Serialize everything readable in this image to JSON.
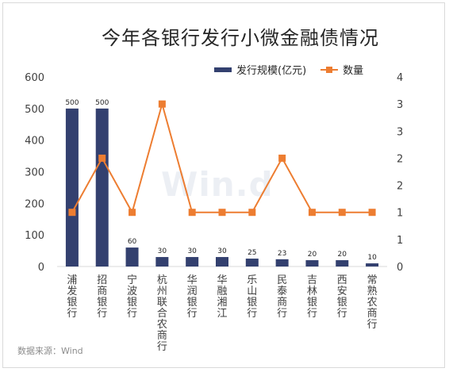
{
  "chart_data": {
    "type": "bar",
    "title": "今年各银行发行小微金融债情况",
    "source": "数据来源：Wind",
    "watermark": "Win.d",
    "categories": [
      "浦发银行",
      "招商银行",
      "宁波银行",
      "杭州联合农商行",
      "华润银行",
      "华融湘江",
      "乐山银行",
      "民泰商行",
      "吉林银行",
      "西安银行",
      "常熟农商行"
    ],
    "series": [
      {
        "name": "发行规模(亿元)",
        "type": "bar",
        "axis": "left",
        "color": "#33406f",
        "values": [
          500,
          500,
          60,
          30,
          30,
          30,
          25,
          23,
          20,
          20,
          10
        ]
      },
      {
        "name": "数量",
        "type": "line",
        "axis": "right",
        "color": "#ed7d31",
        "values": [
          1,
          2,
          1,
          3,
          1,
          1,
          1,
          2,
          1,
          1,
          1
        ]
      }
    ],
    "y_left": {
      "ticks": [
        "0",
        "100",
        "200",
        "300",
        "400",
        "500",
        "600"
      ],
      "lim": [
        0,
        600
      ]
    },
    "y_right": {
      "ticks": [
        "0",
        "1",
        "1",
        "2",
        "2",
        "3",
        "3",
        "4"
      ],
      "lim": [
        0,
        3.5
      ]
    },
    "grid": false,
    "legend_position": "top-right"
  }
}
